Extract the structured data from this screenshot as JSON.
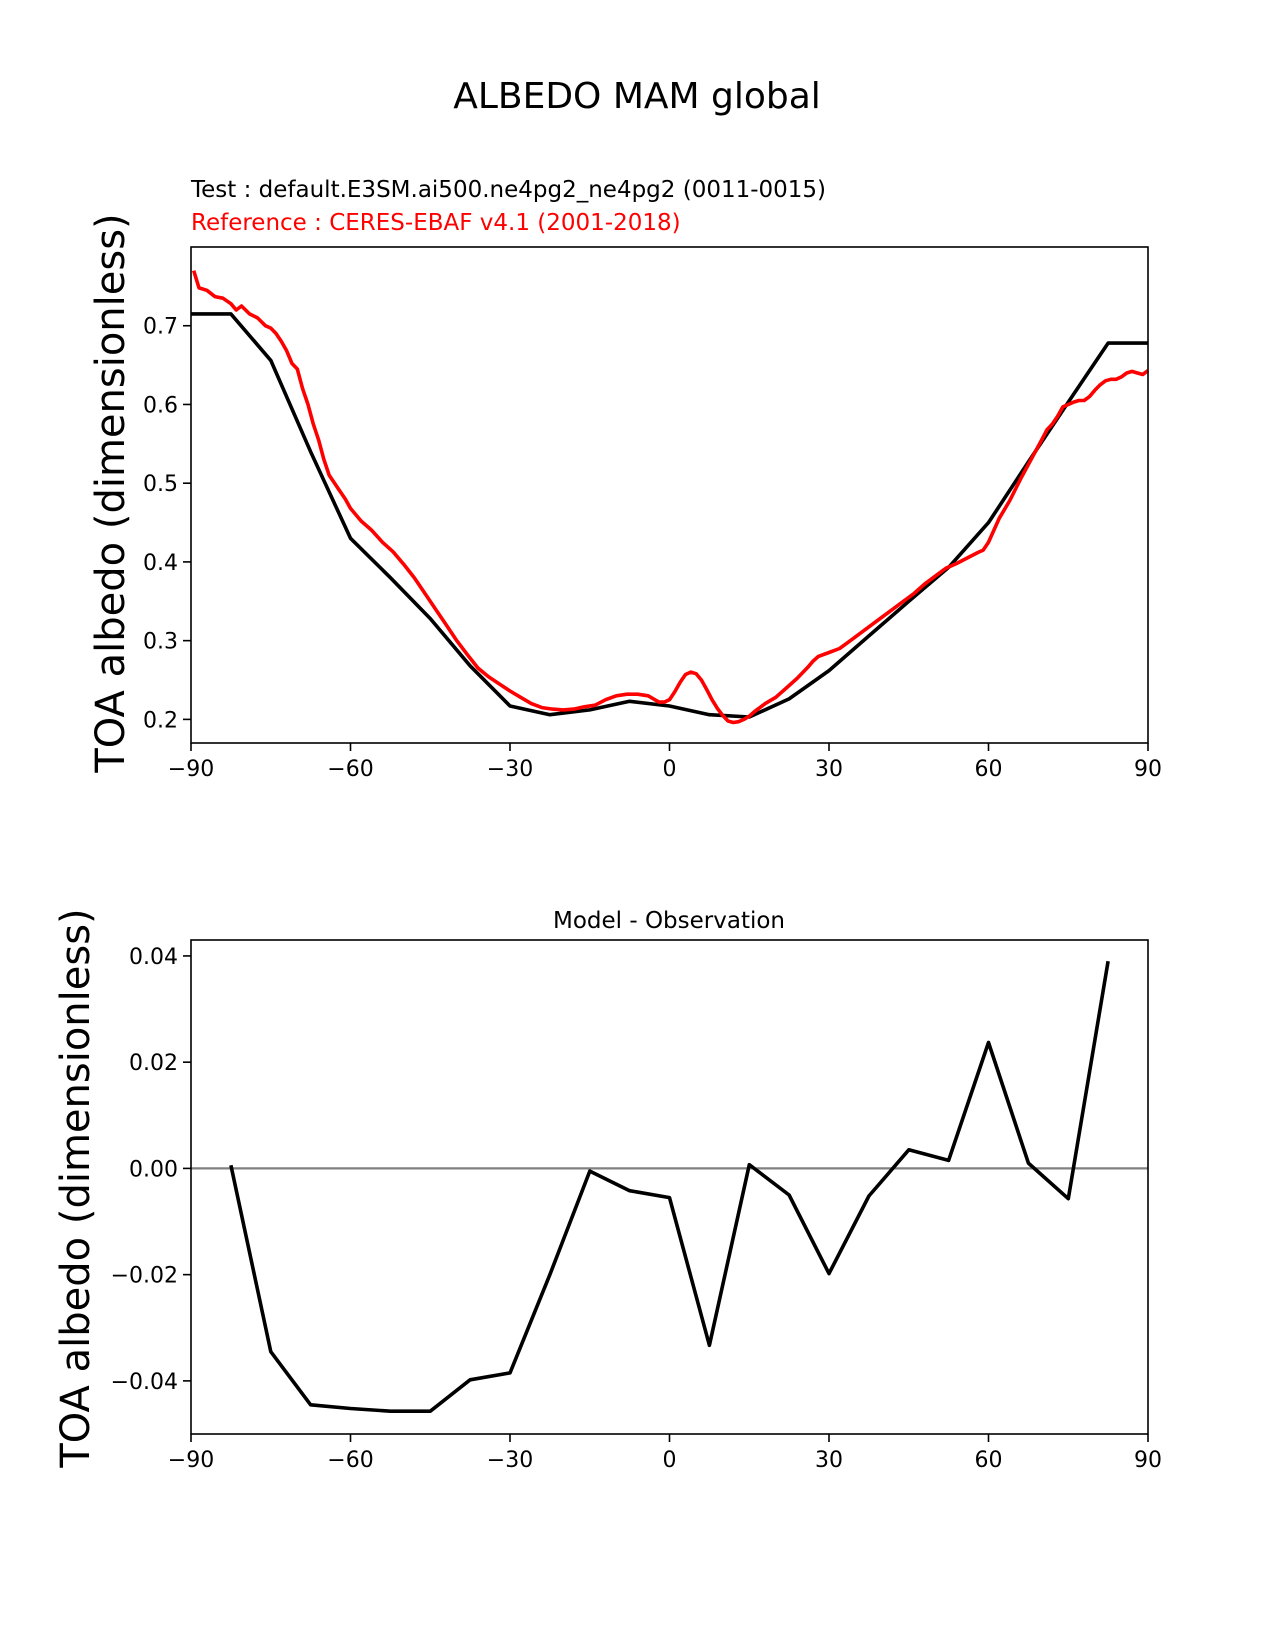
{
  "figure": {
    "title": "ALBEDO MAM global"
  },
  "chart_data": [
    {
      "type": "line",
      "test_label": "Test : default.E3SM.ai500.ne4pg2_ne4pg2 (0011-0015)",
      "reference_label": "Reference : CERES-EBAF v4.1 (2001-2018)",
      "xlabel": "",
      "ylabel": "TOA albedo (dimensionless)",
      "xlim": [
        -90,
        90
      ],
      "ylim": [
        0.17,
        0.8
      ],
      "xticks": [
        -90,
        -60,
        -30,
        0,
        30,
        60,
        90
      ],
      "xtick_labels": [
        "−90",
        "−60",
        "−30",
        "0",
        "30",
        "60",
        "90"
      ],
      "yticks": [
        0.2,
        0.3,
        0.4,
        0.5,
        0.6,
        0.7
      ],
      "ytick_labels": [
        "0.2",
        "0.3",
        "0.4",
        "0.5",
        "0.6",
        "0.7"
      ],
      "grid": false,
      "series": [
        {
          "color": "#000000",
          "x": [
            -90,
            -82.5,
            -75,
            -67.5,
            -60,
            -52.5,
            -45,
            -37.5,
            -30,
            -22.5,
            -15,
            -7.5,
            0,
            7.5,
            15,
            22.5,
            30,
            37.5,
            45,
            52.5,
            60,
            67.5,
            75,
            82.5,
            90
          ],
          "y": [
            0.715,
            0.715,
            0.656,
            0.54,
            0.43,
            0.38,
            0.328,
            0.268,
            0.217,
            0.206,
            0.212,
            0.223,
            0.217,
            0.206,
            0.203,
            0.226,
            0.262,
            0.306,
            0.35,
            0.393,
            0.45,
            0.527,
            0.603,
            0.678,
            0.678
          ]
        },
        {
          "color": "#ff0000",
          "x": [
            -89.5,
            -88.5,
            -87,
            -85.5,
            -84,
            -82.5,
            -81.5,
            -80.5,
            -79,
            -77.5,
            -76,
            -75,
            -74,
            -73,
            -72,
            -71,
            -70,
            -69,
            -68,
            -67,
            -66,
            -65,
            -64,
            -62,
            -61,
            -60,
            -58,
            -56,
            -54,
            -52,
            -50,
            -48,
            -46,
            -44,
            -42,
            -40,
            -38,
            -36,
            -34,
            -32,
            -30,
            -28,
            -26,
            -24,
            -22,
            -20,
            -18,
            -16,
            -14,
            -12,
            -10,
            -8,
            -6,
            -4,
            -2,
            -1,
            0,
            1,
            2,
            3,
            4,
            5,
            6,
            7,
            8,
            9,
            10,
            11,
            12,
            13,
            14,
            15,
            16,
            17,
            18,
            20,
            22,
            24,
            26,
            27,
            28,
            30,
            32,
            34,
            36,
            38,
            40,
            42,
            44,
            46,
            48,
            50,
            52,
            54,
            56,
            58,
            59,
            60,
            61,
            62,
            64,
            66,
            68,
            70,
            71,
            72,
            73,
            74,
            75,
            76,
            77,
            78,
            79,
            80,
            81,
            82,
            83,
            84,
            85,
            86,
            87,
            88,
            89,
            90
          ],
          "y": [
            0.77,
            0.748,
            0.745,
            0.737,
            0.735,
            0.728,
            0.72,
            0.725,
            0.715,
            0.71,
            0.7,
            0.697,
            0.69,
            0.68,
            0.668,
            0.652,
            0.645,
            0.62,
            0.6,
            0.575,
            0.555,
            0.53,
            0.51,
            0.49,
            0.48,
            0.468,
            0.452,
            0.44,
            0.425,
            0.413,
            0.397,
            0.38,
            0.36,
            0.34,
            0.32,
            0.3,
            0.282,
            0.265,
            0.254,
            0.245,
            0.236,
            0.228,
            0.22,
            0.215,
            0.213,
            0.212,
            0.213,
            0.216,
            0.218,
            0.225,
            0.23,
            0.232,
            0.232,
            0.23,
            0.222,
            0.222,
            0.225,
            0.235,
            0.247,
            0.257,
            0.26,
            0.258,
            0.25,
            0.238,
            0.225,
            0.214,
            0.205,
            0.198,
            0.196,
            0.197,
            0.2,
            0.204,
            0.21,
            0.215,
            0.22,
            0.228,
            0.24,
            0.252,
            0.266,
            0.274,
            0.28,
            0.285,
            0.29,
            0.3,
            0.31,
            0.32,
            0.33,
            0.34,
            0.35,
            0.36,
            0.372,
            0.382,
            0.392,
            0.398,
            0.405,
            0.412,
            0.415,
            0.425,
            0.44,
            0.455,
            0.478,
            0.505,
            0.53,
            0.555,
            0.568,
            0.575,
            0.585,
            0.597,
            0.6,
            0.603,
            0.605,
            0.605,
            0.61,
            0.618,
            0.625,
            0.63,
            0.632,
            0.632,
            0.635,
            0.64,
            0.642,
            0.64,
            0.638,
            0.643
          ]
        }
      ]
    },
    {
      "type": "line",
      "title": "Model - Observation",
      "xlabel": "",
      "ylabel": "TOA albedo (dimensionless)",
      "xlim": [
        -90,
        90
      ],
      "ylim": [
        -0.05,
        0.043
      ],
      "xticks": [
        -90,
        -60,
        -30,
        0,
        30,
        60,
        90
      ],
      "xtick_labels": [
        "−90",
        "−60",
        "−30",
        "0",
        "30",
        "60",
        "90"
      ],
      "yticks": [
        0.04,
        0.02,
        0.0,
        -0.02,
        -0.04
      ],
      "ytick_labels": [
        "0.04",
        "0.02",
        "0.00",
        "−0.02",
        "−0.04"
      ],
      "grid": false,
      "zero_line_color": "#808080",
      "series": [
        {
          "color": "#000000",
          "x": [
            -82.5,
            -75,
            -67.5,
            -60,
            -52.5,
            -45,
            -37.5,
            -30,
            -22.5,
            -15,
            -7.5,
            0,
            7.5,
            15,
            22.5,
            30,
            37.5,
            45,
            52.5,
            60,
            67.5,
            75,
            82.5
          ],
          "y": [
            0.0006,
            -0.0345,
            -0.0445,
            -0.0452,
            -0.0457,
            -0.0457,
            -0.0398,
            -0.0385,
            -0.02,
            -0.0005,
            -0.0042,
            -0.0055,
            -0.0333,
            0.0007,
            -0.005,
            -0.0198,
            -0.0052,
            0.0035,
            0.0015,
            0.0237,
            0.001,
            -0.0057,
            0.039
          ]
        }
      ]
    }
  ]
}
